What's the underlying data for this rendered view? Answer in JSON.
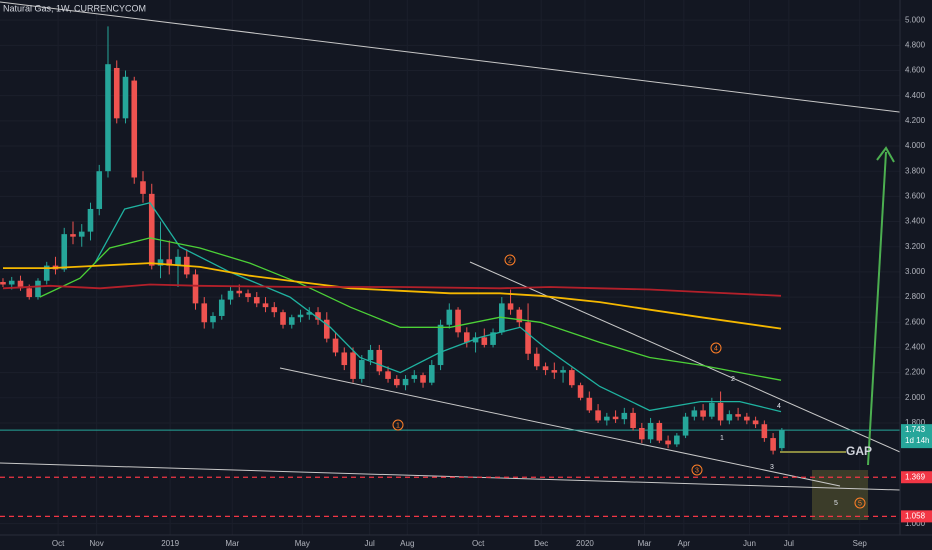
{
  "chart_data": {
    "type": "candlestick",
    "title": "Natural Gas, 1W, CURRENCYCOM",
    "open": [
      2.92,
      2.9,
      2.93,
      2.87,
      2.8,
      2.93,
      3.05,
      3.02,
      3.3,
      3.28,
      3.32,
      3.5,
      3.8,
      4.62,
      4.22,
      4.52,
      3.72,
      3.62,
      3.05,
      3.1,
      3.05,
      3.12,
      2.98,
      2.75,
      2.6,
      2.65,
      2.78,
      2.85,
      2.83,
      2.8,
      2.75,
      2.72,
      2.68,
      2.58,
      2.64,
      2.66,
      2.68,
      2.62,
      2.47,
      2.36,
      2.36,
      2.15,
      2.3,
      2.38,
      2.21,
      2.15,
      2.1,
      2.15,
      2.18,
      2.12,
      2.26,
      2.58,
      2.7,
      2.52,
      2.44,
      2.48,
      2.42,
      2.52,
      2.75,
      2.7,
      2.6,
      2.35,
      2.25,
      2.22,
      2.2,
      2.22,
      2.1,
      2.0,
      1.9,
      1.82,
      1.85,
      1.83,
      1.88,
      1.76,
      1.67,
      1.8,
      1.66,
      1.63,
      1.7,
      1.85,
      1.9,
      1.85,
      1.96,
      1.82,
      1.87,
      1.85,
      1.82,
      1.79,
      1.68,
      1.6
    ],
    "high": [
      2.95,
      2.96,
      2.97,
      2.9,
      2.95,
      3.08,
      3.12,
      3.35,
      3.4,
      3.38,
      3.55,
      3.85,
      4.95,
      4.68,
      4.6,
      4.55,
      3.8,
      3.7,
      3.4,
      3.25,
      3.18,
      3.18,
      3.02,
      2.8,
      2.68,
      2.82,
      2.88,
      2.9,
      2.86,
      2.84,
      2.8,
      2.76,
      2.7,
      2.66,
      2.7,
      2.72,
      2.72,
      2.68,
      2.52,
      2.4,
      2.4,
      2.34,
      2.42,
      2.42,
      2.25,
      2.18,
      2.18,
      2.22,
      2.2,
      2.3,
      2.62,
      2.75,
      2.72,
      2.56,
      2.52,
      2.55,
      2.55,
      2.8,
      2.86,
      2.72,
      2.75,
      2.4,
      2.28,
      2.28,
      2.25,
      2.24,
      2.12,
      2.05,
      1.95,
      1.88,
      1.9,
      1.92,
      1.92,
      1.8,
      1.84,
      1.82,
      1.7,
      1.72,
      1.88,
      1.93,
      1.95,
      2.0,
      2.05,
      1.9,
      1.92,
      1.88,
      1.85,
      1.82,
      1.72,
      1.76
    ],
    "low": [
      2.88,
      2.86,
      2.85,
      2.78,
      2.78,
      2.9,
      2.98,
      3.0,
      3.22,
      3.2,
      3.25,
      3.45,
      3.75,
      4.18,
      4.18,
      3.7,
      3.55,
      3.02,
      2.95,
      2.98,
      2.88,
      2.95,
      2.7,
      2.55,
      2.55,
      2.62,
      2.74,
      2.8,
      2.76,
      2.72,
      2.68,
      2.64,
      2.55,
      2.55,
      2.6,
      2.62,
      2.58,
      2.44,
      2.33,
      2.22,
      2.12,
      2.12,
      2.26,
      2.18,
      2.12,
      2.08,
      2.06,
      2.12,
      2.08,
      2.1,
      2.22,
      2.55,
      2.48,
      2.4,
      2.36,
      2.4,
      2.4,
      2.5,
      2.66,
      2.56,
      2.3,
      2.22,
      2.18,
      2.15,
      2.12,
      2.08,
      1.98,
      1.88,
      1.8,
      1.78,
      1.8,
      1.79,
      1.74,
      1.64,
      1.64,
      1.64,
      1.6,
      1.61,
      1.68,
      1.82,
      1.82,
      1.83,
      1.78,
      1.79,
      1.82,
      1.79,
      1.76,
      1.65,
      1.55,
      1.58
    ],
    "close": [
      2.9,
      2.93,
      2.87,
      2.8,
      2.93,
      3.05,
      3.02,
      3.3,
      3.28,
      3.32,
      3.5,
      3.8,
      4.65,
      4.22,
      4.55,
      3.75,
      3.62,
      3.05,
      3.1,
      3.05,
      3.12,
      2.98,
      2.75,
      2.6,
      2.65,
      2.78,
      2.85,
      2.83,
      2.8,
      2.75,
      2.72,
      2.68,
      2.58,
      2.64,
      2.66,
      2.68,
      2.62,
      2.47,
      2.36,
      2.26,
      2.15,
      2.3,
      2.38,
      2.21,
      2.15,
      2.1,
      2.15,
      2.18,
      2.12,
      2.26,
      2.58,
      2.7,
      2.52,
      2.44,
      2.48,
      2.42,
      2.52,
      2.75,
      2.7,
      2.6,
      2.35,
      2.25,
      2.22,
      2.2,
      2.22,
      2.1,
      2.0,
      1.9,
      1.82,
      1.85,
      1.83,
      1.88,
      1.76,
      1.67,
      1.8,
      1.66,
      1.63,
      1.7,
      1.85,
      1.9,
      1.85,
      1.96,
      1.82,
      1.87,
      1.85,
      1.82,
      1.79,
      1.68,
      1.58,
      1.74
    ],
    "up_color": "#26a69a",
    "down_color": "#ef5350",
    "xlim": [
      -0.34,
      102.5
    ],
    "xticks": [
      {
        "value": 6.3,
        "label": "Oct"
      },
      {
        "value": 10.7,
        "label": "Nov"
      },
      {
        "value": 19.1,
        "label": "2019"
      },
      {
        "value": 26.2,
        "label": "Mar"
      },
      {
        "value": 34.2,
        "label": "May"
      },
      {
        "value": 41.9,
        "label": "Jul"
      },
      {
        "value": 46.2,
        "label": "Aug"
      },
      {
        "value": 54.3,
        "label": "Oct"
      },
      {
        "value": 61.5,
        "label": "Dec"
      },
      {
        "value": 66.5,
        "label": "2020"
      },
      {
        "value": 73.3,
        "label": "Mar"
      },
      {
        "value": 77.8,
        "label": "Apr"
      },
      {
        "value": 85.3,
        "label": "Jun"
      },
      {
        "value": 89.8,
        "label": "Jul"
      },
      {
        "value": 97.9,
        "label": "Sep"
      }
    ],
    "ylim": [
      0.91,
      5.16
    ],
    "yticks": [
      {
        "value": 1,
        "label": "1.000"
      },
      {
        "value": 1.8,
        "label": "1.800"
      },
      {
        "value": 2,
        "label": "2.000"
      },
      {
        "value": 2.2,
        "label": "2.200"
      },
      {
        "value": 2.4,
        "label": "2.400"
      },
      {
        "value": 2.6,
        "label": "2.600"
      },
      {
        "value": 2.8,
        "label": "2.800"
      },
      {
        "value": 3,
        "label": "3.000"
      },
      {
        "value": 3.2,
        "label": "3.200"
      },
      {
        "value": 3.4,
        "label": "3.400"
      },
      {
        "value": 3.6,
        "label": "3.600"
      },
      {
        "value": 3.8,
        "label": "3.800"
      },
      {
        "value": 4,
        "label": "4.000"
      },
      {
        "value": 4.2,
        "label": "4.200"
      },
      {
        "value": 4.4,
        "label": "4.400"
      },
      {
        "value": 4.6,
        "label": "4.600"
      },
      {
        "value": 4.8,
        "label": "4.800"
      },
      {
        "value": 5,
        "label": "5.000"
      }
    ],
    "lines": [
      {
        "color": "#1fb2a0",
        "x": [
          10.5,
          13.9,
          16.8,
          20.2,
          25.9,
          32.8,
          37.4,
          40.8,
          45.4,
          49.9,
          54.5,
          59.1,
          61.9,
          68.2,
          73.9,
          79.7,
          84.2,
          88.9
        ],
        "values": [
          3.07,
          3.5,
          3.55,
          3.2,
          3.0,
          2.8,
          2.56,
          2.32,
          2.2,
          2.36,
          2.48,
          2.56,
          2.4,
          2.09,
          1.9,
          1.97,
          1.97,
          1.89
        ]
      },
      {
        "color": "#4cd137",
        "x": [
          4.2,
          8.8,
          12.2,
          16.8,
          22.5,
          28.2,
          33.9,
          39.7,
          45.4,
          51.1,
          56.8,
          61.4,
          68.2,
          73.9,
          79.7,
          84.2,
          88.9
        ],
        "values": [
          2.8,
          2.95,
          3.19,
          3.27,
          3.19,
          3.07,
          2.91,
          2.72,
          2.56,
          2.56,
          2.64,
          2.6,
          2.44,
          2.32,
          2.26,
          2.2,
          2.14
        ]
      },
      {
        "color": "#f5b800",
        "x": [
          0,
          5.4,
          11.1,
          16.8,
          22.5,
          28.2,
          33.9,
          39.7,
          45.4,
          51.1,
          56.8,
          61.4,
          68.2,
          73.9,
          79.7,
          88.9
        ],
        "values": [
          3.03,
          3.03,
          3.05,
          3.07,
          3.04,
          2.97,
          2.92,
          2.87,
          2.85,
          2.83,
          2.83,
          2.81,
          2.76,
          2.7,
          2.64,
          2.55
        ]
      },
      {
        "color": "#b3202a",
        "x": [
          0,
          5.4,
          11.1,
          16.8,
          22.5,
          33.9,
          45.4,
          56.8,
          62.5,
          68.2,
          73.9,
          79.7,
          88.9
        ],
        "values": [
          2.87,
          2.89,
          2.87,
          2.9,
          2.89,
          2.88,
          2.88,
          2.87,
          2.88,
          2.87,
          2.86,
          2.84,
          2.81
        ]
      }
    ],
    "levels": [
      1.369,
      1.058
    ],
    "level_color": "#f23645",
    "last_price": 1.743,
    "countdown": "1d 14h",
    "gap_label": "GAP",
    "waves": {
      "circled": [
        "1",
        "2",
        "3",
        "4",
        "5"
      ],
      "plain": [
        "1",
        "2",
        "3",
        "4",
        "5"
      ]
    }
  }
}
